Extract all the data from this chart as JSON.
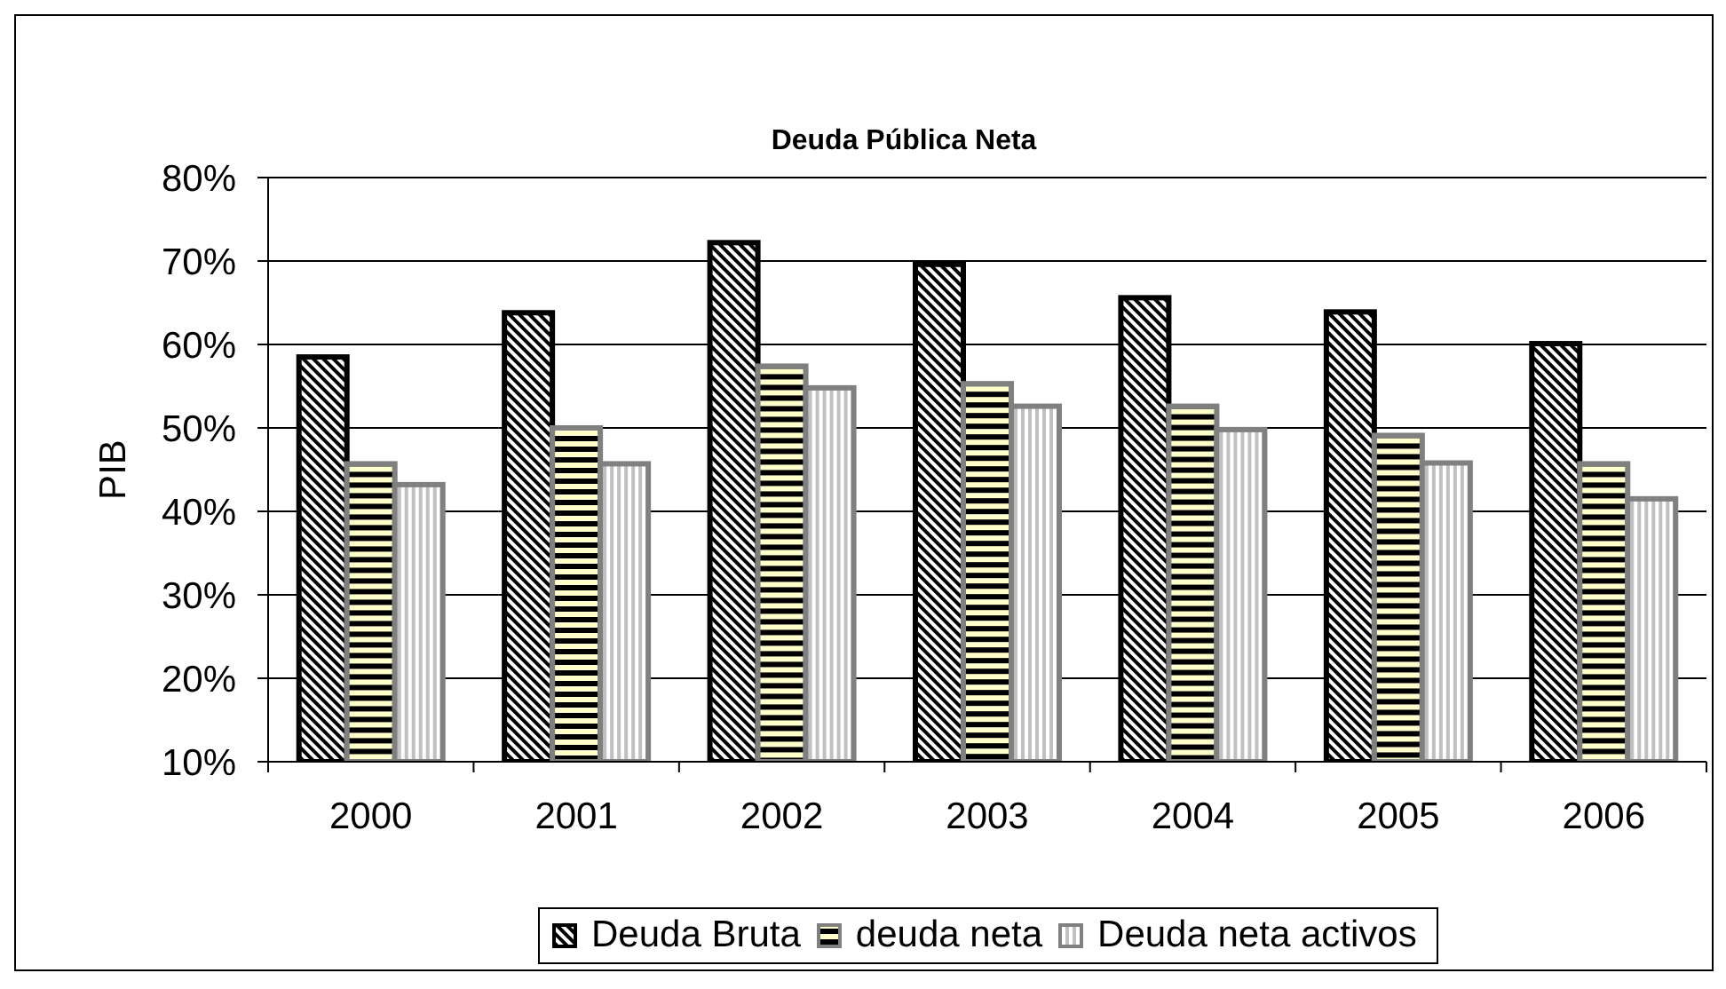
{
  "chart_data": {
    "type": "bar",
    "title": "Deuda Pública Neta",
    "ylabel": "PIB",
    "categories": [
      "2000",
      "2001",
      "2002",
      "2003",
      "2004",
      "2005",
      "2006"
    ],
    "series": [
      {
        "name": "Deuda Bruta",
        "color": "#000000",
        "values": [
          58.5,
          63.8,
          72.2,
          69.6,
          65.6,
          63.9,
          60.1
        ]
      },
      {
        "name": "deuda neta",
        "color": "#ffffcc",
        "values": [
          45.7,
          50.0,
          57.4,
          55.3,
          52.6,
          49.1,
          45.7
        ]
      },
      {
        "name": "Deuda neta activos",
        "color": "#c0c0c0",
        "values": [
          43.2,
          45.7,
          54.8,
          52.6,
          49.8,
          45.8,
          41.5
        ]
      }
    ],
    "ylim": [
      10,
      80
    ],
    "yticks": [
      {
        "value": 10,
        "label": "10%"
      },
      {
        "value": 20,
        "label": "20%"
      },
      {
        "value": 30,
        "label": "30%"
      },
      {
        "value": 40,
        "label": "40%"
      },
      {
        "value": 50,
        "label": "50%"
      },
      {
        "value": 60,
        "label": "60%"
      },
      {
        "value": 70,
        "label": "70%"
      },
      {
        "value": 80,
        "label": "80%"
      }
    ],
    "grid": "y",
    "legend": "bottom"
  }
}
